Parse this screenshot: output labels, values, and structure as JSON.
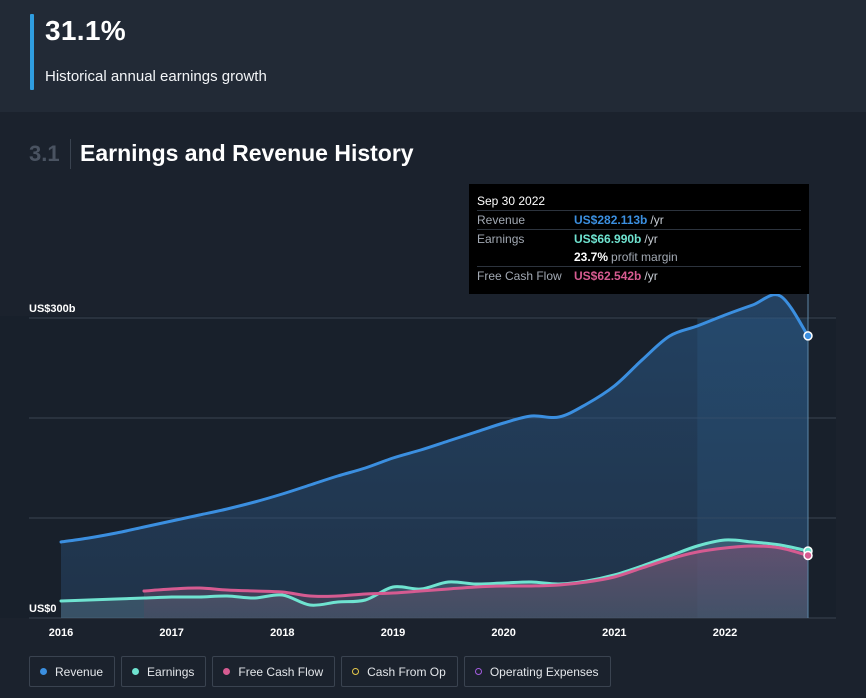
{
  "header": {
    "growth_value": "31.1%",
    "growth_caption": "Historical annual earnings growth"
  },
  "section": {
    "number": "3.1",
    "title": "Earnings and Revenue History"
  },
  "tooltip": {
    "date": "Sep 30 2022",
    "rows": [
      {
        "label": "Revenue",
        "value": "US$282.113b",
        "unit": "/yr",
        "color": "#3b8fe0"
      },
      {
        "label": "Earnings",
        "value": "US$66.990b",
        "unit": "/yr",
        "color": "#6fe3d0"
      },
      {
        "label": "Free Cash Flow",
        "value": "US$62.542b",
        "unit": "/yr",
        "color": "#d65b91"
      }
    ],
    "profit_margin_value": "23.7%",
    "profit_margin_label": "profit margin"
  },
  "legend": [
    {
      "label": "Revenue",
      "color": "#3b8fe0",
      "style": "filled"
    },
    {
      "label": "Earnings",
      "color": "#6fe3d0",
      "style": "filled"
    },
    {
      "label": "Free Cash Flow",
      "color": "#d65b91",
      "style": "filled"
    },
    {
      "label": "Cash From Op",
      "color": "#e6c84a",
      "style": "hollow"
    },
    {
      "label": "Operating Expenses",
      "color": "#a35ce0",
      "style": "hollow"
    }
  ],
  "chart_data": {
    "type": "area",
    "title": "Earnings and Revenue History",
    "y_tick_labels": [
      {
        "value": 300,
        "label": "US$300b"
      },
      {
        "value": 0,
        "label": "US$0"
      }
    ],
    "ylim": [
      0,
      300
    ],
    "y_gridlines": [
      0,
      100,
      200,
      300
    ],
    "x_ticks": [
      2016,
      2017,
      2018,
      2019,
      2020,
      2021,
      2022
    ],
    "xlim": [
      2016.0,
      2022.75
    ],
    "highlight_range": [
      2021.75,
      2022.75
    ],
    "legend_position": "bottom",
    "series": [
      {
        "name": "Revenue",
        "color": "#3b8fe0",
        "x": [
          2016.0,
          2016.25,
          2016.5,
          2016.75,
          2017.0,
          2017.25,
          2017.5,
          2017.75,
          2018.0,
          2018.25,
          2018.5,
          2018.75,
          2019.0,
          2019.25,
          2019.5,
          2019.75,
          2020.0,
          2020.25,
          2020.5,
          2020.75,
          2021.0,
          2021.25,
          2021.5,
          2021.75,
          2022.0,
          2022.25,
          2022.5,
          2022.75
        ],
        "values": [
          76,
          80,
          85,
          91,
          97,
          103,
          109,
          116,
          124,
          133,
          142,
          150,
          160,
          168,
          177,
          186,
          195,
          202,
          201,
          214,
          232,
          258,
          282,
          292,
          303,
          313,
          322,
          282.113
        ]
      },
      {
        "name": "Earnings",
        "color": "#6fe3d0",
        "x": [
          2016.0,
          2016.25,
          2016.5,
          2016.75,
          2017.0,
          2017.25,
          2017.5,
          2017.75,
          2018.0,
          2018.25,
          2018.5,
          2018.75,
          2019.0,
          2019.25,
          2019.5,
          2019.75,
          2020.0,
          2020.25,
          2020.5,
          2020.75,
          2021.0,
          2021.25,
          2021.5,
          2021.75,
          2022.0,
          2022.25,
          2022.5,
          2022.75
        ],
        "values": [
          17,
          18,
          19,
          20,
          21,
          21,
          22,
          20,
          23,
          13,
          16,
          18,
          31,
          29,
          36,
          34,
          35,
          36,
          34,
          37,
          43,
          52,
          62,
          72,
          78,
          76,
          73,
          66.99
        ]
      },
      {
        "name": "Free Cash Flow",
        "color": "#d65b91",
        "x": [
          2016.75,
          2017.0,
          2017.25,
          2017.5,
          2017.75,
          2018.0,
          2018.25,
          2018.5,
          2018.75,
          2019.0,
          2019.25,
          2019.5,
          2019.75,
          2020.0,
          2020.25,
          2020.5,
          2020.75,
          2021.0,
          2021.25,
          2021.5,
          2021.75,
          2022.0,
          2022.25,
          2022.5,
          2022.75
        ],
        "values": [
          27,
          29,
          30,
          28,
          27,
          26,
          22,
          22,
          24,
          25,
          27,
          29,
          31,
          32,
          32,
          33,
          36,
          41,
          50,
          59,
          66,
          70,
          72,
          70,
          62.542
        ]
      }
    ]
  }
}
